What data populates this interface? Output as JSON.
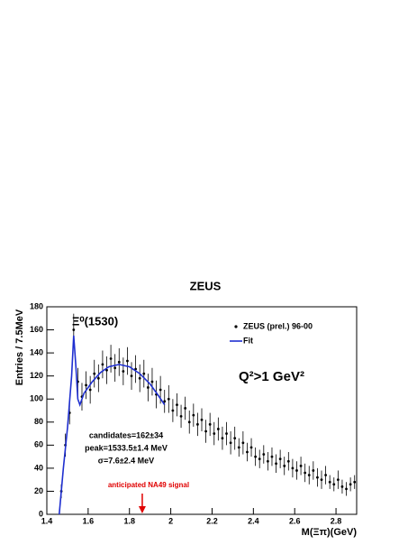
{
  "chart_data": {
    "type": "scatter",
    "title": "ZEUS",
    "x_label": "M(Ξπ)(GeV)",
    "y_label": "Entries / 7.5MeV",
    "xlim": [
      1.4,
      2.9
    ],
    "ylim": [
      0,
      180
    ],
    "xticks": [
      1.4,
      1.6,
      1.8,
      2,
      2.2,
      2.4,
      2.6,
      2.8
    ],
    "yticks": [
      0,
      20,
      40,
      60,
      80,
      100,
      120,
      140,
      160,
      180
    ],
    "legend": "upper right",
    "series": [
      {
        "name": "ZEUS (prel.) 96-00",
        "style": "errorbar",
        "color": "#000000",
        "x": [
          1.47,
          1.49,
          1.51,
          1.53,
          1.55,
          1.57,
          1.59,
          1.61,
          1.63,
          1.65,
          1.67,
          1.69,
          1.71,
          1.73,
          1.75,
          1.77,
          1.79,
          1.81,
          1.83,
          1.85,
          1.87,
          1.89,
          1.91,
          1.93,
          1.95,
          1.97,
          1.99,
          2.01,
          2.03,
          2.05,
          2.07,
          2.09,
          2.11,
          2.13,
          2.15,
          2.17,
          2.19,
          2.21,
          2.23,
          2.25,
          2.27,
          2.29,
          2.31,
          2.33,
          2.35,
          2.37,
          2.39,
          2.41,
          2.43,
          2.45,
          2.47,
          2.49,
          2.51,
          2.53,
          2.55,
          2.57,
          2.59,
          2.61,
          2.63,
          2.65,
          2.67,
          2.69,
          2.71,
          2.73,
          2.75,
          2.77,
          2.79,
          2.81,
          2.83,
          2.85,
          2.87,
          2.89
        ],
        "values": [
          20,
          60,
          88,
          160,
          115,
          102,
          112,
          108,
          122,
          118,
          130,
          125,
          135,
          127,
          132,
          124,
          133,
          120,
          126,
          118,
          122,
          110,
          115,
          104,
          108,
          98,
          100,
          90,
          95,
          85,
          92,
          80,
          86,
          78,
          82,
          72,
          78,
          70,
          74,
          66,
          70,
          62,
          66,
          58,
          62,
          54,
          58,
          50,
          48,
          52,
          46,
          50,
          44,
          48,
          42,
          46,
          40,
          38,
          42,
          36,
          34,
          38,
          32,
          30,
          34,
          28,
          26,
          30,
          24,
          22,
          26,
          28
        ],
        "errors": [
          6,
          10,
          10,
          14,
          12,
          12,
          12,
          12,
          12,
          12,
          12,
          12,
          12,
          12,
          12,
          12,
          12,
          12,
          12,
          12,
          12,
          12,
          12,
          12,
          12,
          10,
          12,
          10,
          10,
          10,
          10,
          10,
          10,
          10,
          10,
          10,
          10,
          10,
          10,
          10,
          10,
          10,
          10,
          8,
          10,
          8,
          8,
          8,
          8,
          8,
          8,
          8,
          8,
          8,
          8,
          8,
          8,
          8,
          8,
          8,
          8,
          8,
          8,
          8,
          8,
          6,
          6,
          8,
          6,
          6,
          6,
          6
        ]
      },
      {
        "name": "Fit",
        "style": "line",
        "color": "#1f2fd0",
        "x": [
          1.46,
          1.48,
          1.5,
          1.52,
          1.53,
          1.54,
          1.55,
          1.56,
          1.58,
          1.62,
          1.66,
          1.7,
          1.75,
          1.8,
          1.85,
          1.9,
          1.94,
          1.97
        ],
        "values": [
          0,
          40,
          75,
          120,
          155,
          130,
          100,
          95,
          105,
          115,
          123,
          128,
          130,
          128,
          122,
          113,
          103,
          95
        ]
      }
    ],
    "annotations": {
      "peak_label": "Ξ⁰(1530)",
      "q2": "Q²>1 GeV²",
      "fit_results": [
        "candidates=162±34",
        "peak=1533.5±1.4 MeV",
        "σ=7.6±2.4 MeV"
      ],
      "signal_label": "anticipated NA49 signal",
      "signal_x": 1.862,
      "signal_color": "#e00000"
    }
  }
}
